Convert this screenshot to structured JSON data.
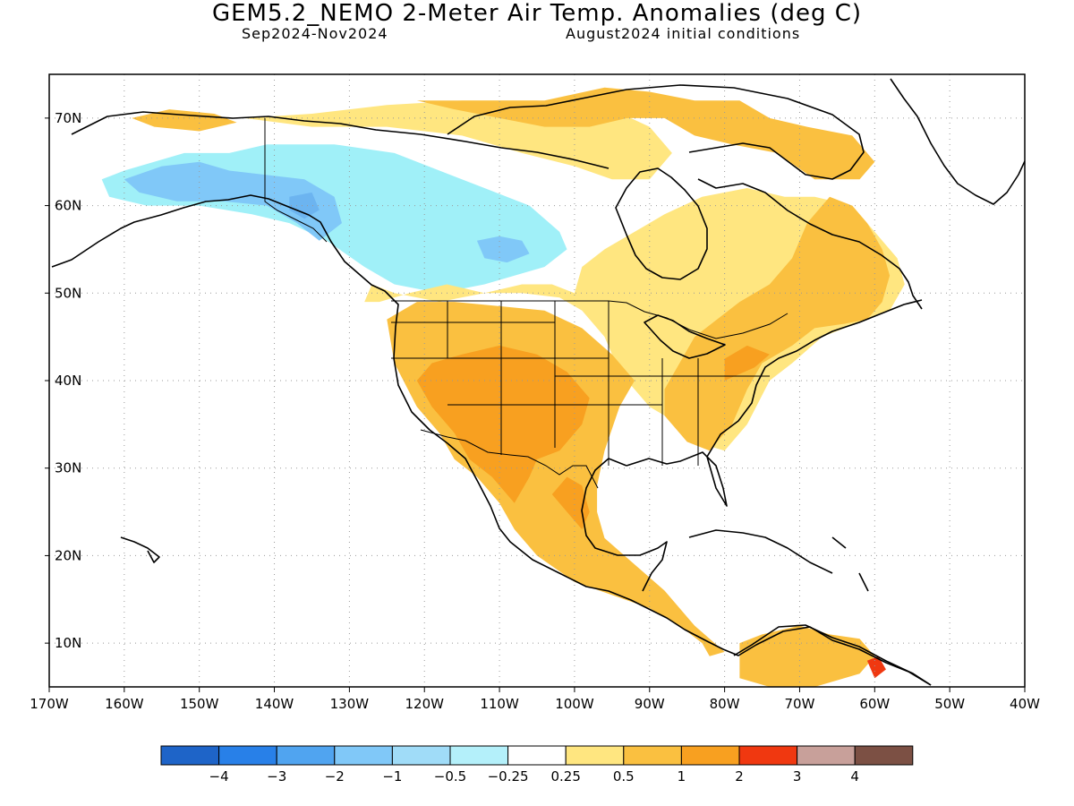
{
  "header": {
    "title": "GEM5.2_NEMO 2-Meter Air Temp. Anomalies (deg C)",
    "period": "Sep2024-Nov2024",
    "init": "August2024 initial conditions"
  },
  "map": {
    "lon_range": [
      -170,
      -40
    ],
    "lat_range": [
      5,
      75
    ],
    "lon_ticks": [
      {
        "lon": -170,
        "label": "170W"
      },
      {
        "lon": -160,
        "label": "160W"
      },
      {
        "lon": -150,
        "label": "150W"
      },
      {
        "lon": -140,
        "label": "140W"
      },
      {
        "lon": -130,
        "label": "130W"
      },
      {
        "lon": -120,
        "label": "120W"
      },
      {
        "lon": -110,
        "label": "110W"
      },
      {
        "lon": -100,
        "label": "100W"
      },
      {
        "lon": -90,
        "label": "90W"
      },
      {
        "lon": -80,
        "label": "80W"
      },
      {
        "lon": -70,
        "label": "70W"
      },
      {
        "lon": -60,
        "label": "60W"
      },
      {
        "lon": -50,
        "label": "50W"
      },
      {
        "lon": -40,
        "label": "40W"
      }
    ],
    "lat_ticks": [
      {
        "lat": 10,
        "label": "10N"
      },
      {
        "lat": 20,
        "label": "20N"
      },
      {
        "lat": 30,
        "label": "30N"
      },
      {
        "lat": 40,
        "label": "40N"
      },
      {
        "lat": 50,
        "label": "50N"
      },
      {
        "lat": 60,
        "label": "60N"
      },
      {
        "lat": 70,
        "label": "70N"
      }
    ],
    "anomaly_regions": [
      {
        "category": "neg_0.5",
        "color": "#a0f0f8",
        "coords": [
          [
            -163,
            63
          ],
          [
            -160,
            64
          ],
          [
            -152,
            66
          ],
          [
            -146,
            66
          ],
          [
            -141,
            67
          ],
          [
            -132,
            67
          ],
          [
            -124,
            66
          ],
          [
            -118,
            64
          ],
          [
            -112,
            62
          ],
          [
            -106,
            60
          ],
          [
            -102,
            57
          ],
          [
            -101,
            55
          ],
          [
            -104,
            53
          ],
          [
            -108,
            52
          ],
          [
            -112,
            51
          ],
          [
            -118,
            50
          ],
          [
            -124,
            51
          ],
          [
            -128,
            53
          ],
          [
            -133,
            56
          ],
          [
            -138,
            58
          ],
          [
            -143,
            59
          ],
          [
            -150,
            60
          ],
          [
            -157,
            60
          ],
          [
            -162,
            61
          ]
        ]
      },
      {
        "category": "neg_1",
        "color": "#80c8f8",
        "coords": [
          [
            -160,
            63
          ],
          [
            -155,
            64.5
          ],
          [
            -150,
            65
          ],
          [
            -146,
            64
          ],
          [
            -141,
            63.5
          ],
          [
            -136,
            63
          ],
          [
            -132,
            61
          ],
          [
            -131,
            58
          ],
          [
            -134,
            56
          ],
          [
            -137,
            58
          ],
          [
            -141,
            60
          ],
          [
            -147,
            60.5
          ],
          [
            -153,
            60.5
          ],
          [
            -158,
            61.5
          ]
        ]
      },
      {
        "category": "neg_1",
        "color": "#80c8f8",
        "coords": [
          [
            -113,
            56
          ],
          [
            -110,
            56.5
          ],
          [
            -107,
            56
          ],
          [
            -106,
            54.5
          ],
          [
            -109,
            53.5
          ],
          [
            -112,
            54
          ]
        ]
      },
      {
        "category": "neg_2",
        "color": "#6cb4f0",
        "coords": [
          [
            -138,
            61
          ],
          [
            -135,
            61.5
          ],
          [
            -134,
            59.5
          ],
          [
            -136,
            58.5
          ],
          [
            -138,
            59.5
          ]
        ]
      },
      {
        "category": "pos_0.25",
        "color": "#ffe680",
        "coords": [
          [
            -126,
            49
          ],
          [
            -122,
            50
          ],
          [
            -117,
            51
          ],
          [
            -112,
            50
          ],
          [
            -107,
            50
          ],
          [
            -102,
            49.5
          ],
          [
            -99,
            48
          ],
          [
            -96,
            45
          ],
          [
            -94,
            41
          ],
          [
            -90,
            37
          ],
          [
            -86,
            35
          ],
          [
            -84,
            33
          ],
          [
            -80,
            32
          ],
          [
            -77,
            35
          ],
          [
            -74,
            40
          ],
          [
            -71,
            42
          ],
          [
            -67,
            45
          ],
          [
            -64,
            46
          ],
          [
            -58,
            48
          ],
          [
            -56,
            51
          ],
          [
            -57,
            54
          ],
          [
            -60,
            57
          ],
          [
            -63,
            60
          ],
          [
            -68,
            61
          ],
          [
            -72,
            61
          ],
          [
            -77,
            62
          ],
          [
            -83,
            61
          ],
          [
            -88,
            59
          ],
          [
            -92,
            57
          ],
          [
            -96,
            55
          ],
          [
            -99,
            53
          ],
          [
            -100,
            50
          ],
          [
            -103,
            51
          ],
          [
            -107,
            51
          ],
          [
            -112,
            50
          ],
          [
            -118,
            49
          ],
          [
            -124,
            50
          ],
          [
            -127,
            51
          ],
          [
            -128,
            49
          ]
        ]
      },
      {
        "category": "pos_0.25",
        "color": "#ffe680",
        "coords": [
          [
            -144,
            70
          ],
          [
            -135,
            69
          ],
          [
            -125,
            69
          ],
          [
            -115,
            68
          ],
          [
            -107,
            66
          ],
          [
            -100,
            64.5
          ],
          [
            -95,
            63
          ],
          [
            -90,
            63
          ],
          [
            -87,
            66
          ],
          [
            -90,
            69
          ],
          [
            -95,
            71
          ],
          [
            -105,
            72
          ],
          [
            -115,
            72
          ],
          [
            -125,
            71.5
          ],
          [
            -135,
            70.5
          ]
        ]
      },
      {
        "category": "pos_0.5",
        "color": "#fac040",
        "coords": [
          [
            -125,
            47
          ],
          [
            -124,
            42
          ],
          [
            -121,
            37
          ],
          [
            -118,
            34
          ],
          [
            -116,
            31
          ],
          [
            -113,
            29
          ],
          [
            -110,
            26
          ],
          [
            -108,
            23
          ],
          [
            -105,
            20
          ],
          [
            -100,
            17
          ],
          [
            -95,
            15.5
          ],
          [
            -90,
            14
          ],
          [
            -86,
            12
          ],
          [
            -83,
            10
          ],
          [
            -82,
            8.5
          ],
          [
            -80,
            9
          ],
          [
            -84,
            12
          ],
          [
            -88,
            16
          ],
          [
            -92,
            19
          ],
          [
            -96,
            22
          ],
          [
            -97,
            25
          ],
          [
            -97,
            28
          ],
          [
            -96,
            32
          ],
          [
            -94,
            37
          ],
          [
            -92,
            40
          ],
          [
            -95,
            43
          ],
          [
            -99,
            46
          ],
          [
            -104,
            48
          ],
          [
            -110,
            48.5
          ],
          [
            -116,
            49
          ],
          [
            -121,
            49
          ]
        ]
      },
      {
        "category": "pos_0.5",
        "color": "#fac040",
        "coords": [
          [
            -88,
            36
          ],
          [
            -85,
            33
          ],
          [
            -82,
            32
          ],
          [
            -79,
            35
          ],
          [
            -77,
            39
          ],
          [
            -75,
            42
          ],
          [
            -71,
            44
          ],
          [
            -68,
            46
          ],
          [
            -64,
            46.5
          ],
          [
            -61,
            47
          ],
          [
            -59,
            49
          ],
          [
            -58,
            52
          ],
          [
            -59,
            55
          ],
          [
            -61,
            58
          ],
          [
            -63,
            60
          ],
          [
            -66,
            61
          ],
          [
            -69,
            58
          ],
          [
            -71,
            54
          ],
          [
            -74,
            51
          ],
          [
            -78,
            49
          ],
          [
            -81,
            47
          ],
          [
            -84,
            45
          ],
          [
            -86,
            42
          ],
          [
            -88,
            39
          ]
        ]
      },
      {
        "category": "pos_0.5",
        "color": "#fac040",
        "coords": [
          [
            -121,
            72
          ],
          [
            -113,
            72
          ],
          [
            -104,
            72
          ],
          [
            -96,
            73.5
          ],
          [
            -90,
            73
          ],
          [
            -84,
            72
          ],
          [
            -78,
            72
          ],
          [
            -74,
            70
          ],
          [
            -69,
            69
          ],
          [
            -63,
            68
          ],
          [
            -60,
            65
          ],
          [
            -62,
            63
          ],
          [
            -68,
            63
          ],
          [
            -73,
            66
          ],
          [
            -79,
            67
          ],
          [
            -84,
            68
          ],
          [
            -88,
            70
          ],
          [
            -93,
            70
          ],
          [
            -98,
            69
          ],
          [
            -104,
            69
          ],
          [
            -110,
            70
          ],
          [
            -116,
            71
          ]
        ]
      },
      {
        "category": "pos_0.5",
        "color": "#fac040",
        "coords": [
          [
            -159,
            70
          ],
          [
            -154,
            71
          ],
          [
            -148,
            70.5
          ],
          [
            -145,
            69.5
          ],
          [
            -150,
            68.5
          ],
          [
            -156,
            69
          ]
        ]
      },
      {
        "category": "pos_0.5",
        "color": "#fac040",
        "coords": [
          [
            -78,
            10
          ],
          [
            -75,
            11
          ],
          [
            -70,
            12
          ],
          [
            -66,
            11
          ],
          [
            -62,
            10.5
          ],
          [
            -60,
            8.5
          ],
          [
            -62,
            6.5
          ],
          [
            -68,
            5
          ],
          [
            -74,
            5
          ],
          [
            -78,
            6
          ]
        ]
      },
      {
        "category": "pos_1",
        "color": "#f8a020",
        "coords": [
          [
            -121,
            40
          ],
          [
            -119,
            37
          ],
          [
            -116,
            34
          ],
          [
            -114,
            31
          ],
          [
            -111,
            29
          ],
          [
            -108,
            26
          ],
          [
            -106,
            29
          ],
          [
            -105,
            31
          ],
          [
            -102,
            32
          ],
          [
            -99,
            35
          ],
          [
            -98,
            38
          ],
          [
            -101,
            41
          ],
          [
            -105,
            43
          ],
          [
            -110,
            44
          ],
          [
            -115,
            43
          ],
          [
            -119,
            42
          ]
        ]
      },
      {
        "category": "pos_1",
        "color": "#f8a020",
        "coords": [
          [
            -103,
            27
          ],
          [
            -101,
            25
          ],
          [
            -99,
            23
          ],
          [
            -98,
            25
          ],
          [
            -99,
            28
          ],
          [
            -101,
            29
          ]
        ]
      },
      {
        "category": "pos_2",
        "color": "#f03810",
        "coords": [
          [
            -61,
            8
          ],
          [
            -59.5,
            8.5
          ],
          [
            -58.5,
            7
          ],
          [
            -60,
            6
          ]
        ]
      }
    ],
    "pos_small_patches": [
      {
        "category": "pos_1",
        "color": "#f8a020",
        "coords": [
          [
            -80,
            40
          ],
          [
            -76,
            41.5
          ],
          [
            -74,
            43
          ],
          [
            -77,
            44
          ],
          [
            -80,
            42.5
          ]
        ]
      }
    ]
  },
  "colorbar": {
    "colors": [
      "#1e64c8",
      "#2880e8",
      "#50a4f0",
      "#80c8f8",
      "#a0dcf8",
      "#b4f0fa",
      "#ffffff",
      "#ffe680",
      "#fac040",
      "#f8a020",
      "#f03810",
      "#c8a09a",
      "#7c5044"
    ],
    "labels": [
      "-4",
      "-3",
      "-2",
      "-1",
      "-0.5",
      "-0.25",
      "0.25",
      "0.5",
      "1",
      "2",
      "3",
      "4"
    ]
  }
}
